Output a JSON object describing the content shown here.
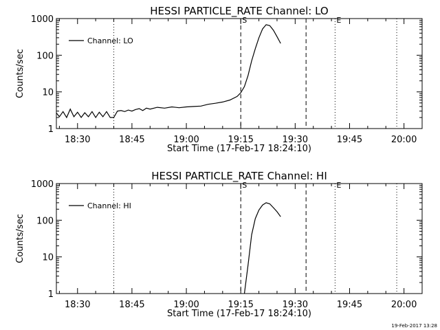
{
  "chart_data": [
    {
      "type": "line",
      "title": "HESSI PARTICLE_RATE Channel: LO",
      "xlabel": "Start Time (17-Feb-17 18:24:10)",
      "ylabel": "Counts/sec",
      "y_scale": "log",
      "ylim": [
        1,
        1000
      ],
      "xlim": [
        "18:24:10",
        "20:05"
      ],
      "x_tick_labels": [
        "18:30",
        "18:45",
        "19:00",
        "19:15",
        "19:30",
        "19:45",
        "20:00"
      ],
      "y_tick_labels": [
        "1",
        "10",
        "100",
        "1000"
      ],
      "legend": {
        "position": "top-left",
        "entries": [
          "Channel: LO"
        ]
      },
      "vlines": [
        {
          "x": "18:40",
          "style": "dotted",
          "label": ""
        },
        {
          "x": "19:15",
          "style": "dashed",
          "label": "S"
        },
        {
          "x": "19:33",
          "style": "dashed",
          "label": ""
        },
        {
          "x": "19:41",
          "style": "dotted",
          "label": "E"
        },
        {
          "x": "19:58",
          "style": "dotted",
          "label": ""
        }
      ],
      "series": [
        {
          "name": "Channel: LO",
          "x": [
            "18:24",
            "18:25",
            "18:26",
            "18:27",
            "18:28",
            "18:29",
            "18:30",
            "18:31",
            "18:32",
            "18:33",
            "18:34",
            "18:35",
            "18:36",
            "18:37",
            "18:38",
            "18:39",
            "18:40",
            "18:41",
            "18:42",
            "18:43",
            "18:44",
            "18:45",
            "18:46",
            "18:47",
            "18:48",
            "18:49",
            "18:50",
            "18:52",
            "18:54",
            "18:56",
            "18:58",
            "19:00",
            "19:02",
            "19:04",
            "19:06",
            "19:08",
            "19:10",
            "19:12",
            "19:14",
            "19:15",
            "19:16",
            "19:17",
            "19:18",
            "19:19",
            "19:20",
            "19:21",
            "19:22",
            "19:23",
            "19:24",
            "19:25",
            "19:26"
          ],
          "y": [
            2.8,
            2.1,
            2.9,
            2.0,
            3.4,
            2.1,
            2.8,
            2.0,
            2.7,
            2.1,
            2.9,
            2.0,
            2.8,
            2.1,
            2.9,
            2.0,
            2.0,
            3.0,
            3.1,
            2.9,
            3.2,
            3.0,
            3.3,
            3.5,
            3.1,
            3.6,
            3.4,
            3.8,
            3.6,
            3.9,
            3.7,
            3.9,
            4.0,
            4.1,
            4.6,
            4.9,
            5.3,
            6.0,
            7.5,
            9.5,
            14,
            28,
            70,
            150,
            300,
            520,
            680,
            640,
            480,
            320,
            210
          ]
        }
      ]
    },
    {
      "type": "line",
      "title": "HESSI PARTICLE_RATE Channel: HI",
      "xlabel": "Start Time (17-Feb-17 18:24:10)",
      "ylabel": "Counts/sec",
      "y_scale": "log",
      "ylim": [
        1,
        1000
      ],
      "xlim": [
        "18:24:10",
        "20:05"
      ],
      "x_tick_labels": [
        "18:30",
        "18:45",
        "19:00",
        "19:15",
        "19:30",
        "19:45",
        "20:00"
      ],
      "y_tick_labels": [
        "1",
        "10",
        "100",
        "1000"
      ],
      "legend": {
        "position": "top-left",
        "entries": [
          "Channel: HI"
        ]
      },
      "vlines": [
        {
          "x": "18:40",
          "style": "dotted",
          "label": ""
        },
        {
          "x": "19:15",
          "style": "dashed",
          "label": "S"
        },
        {
          "x": "19:33",
          "style": "dashed",
          "label": ""
        },
        {
          "x": "19:41",
          "style": "dotted",
          "label": "E"
        },
        {
          "x": "19:58",
          "style": "dotted",
          "label": ""
        }
      ],
      "series": [
        {
          "name": "Channel: HI",
          "x": [
            "19:16",
            "19:17",
            "19:18",
            "19:19",
            "19:20",
            "19:21",
            "19:22",
            "19:23",
            "19:24",
            "19:25",
            "19:26"
          ],
          "y": [
            1.0,
            6,
            40,
            110,
            190,
            260,
            300,
            280,
            220,
            170,
            125
          ]
        }
      ]
    }
  ],
  "footer": {
    "timestamp": "19-Feb-2017 13:28"
  }
}
